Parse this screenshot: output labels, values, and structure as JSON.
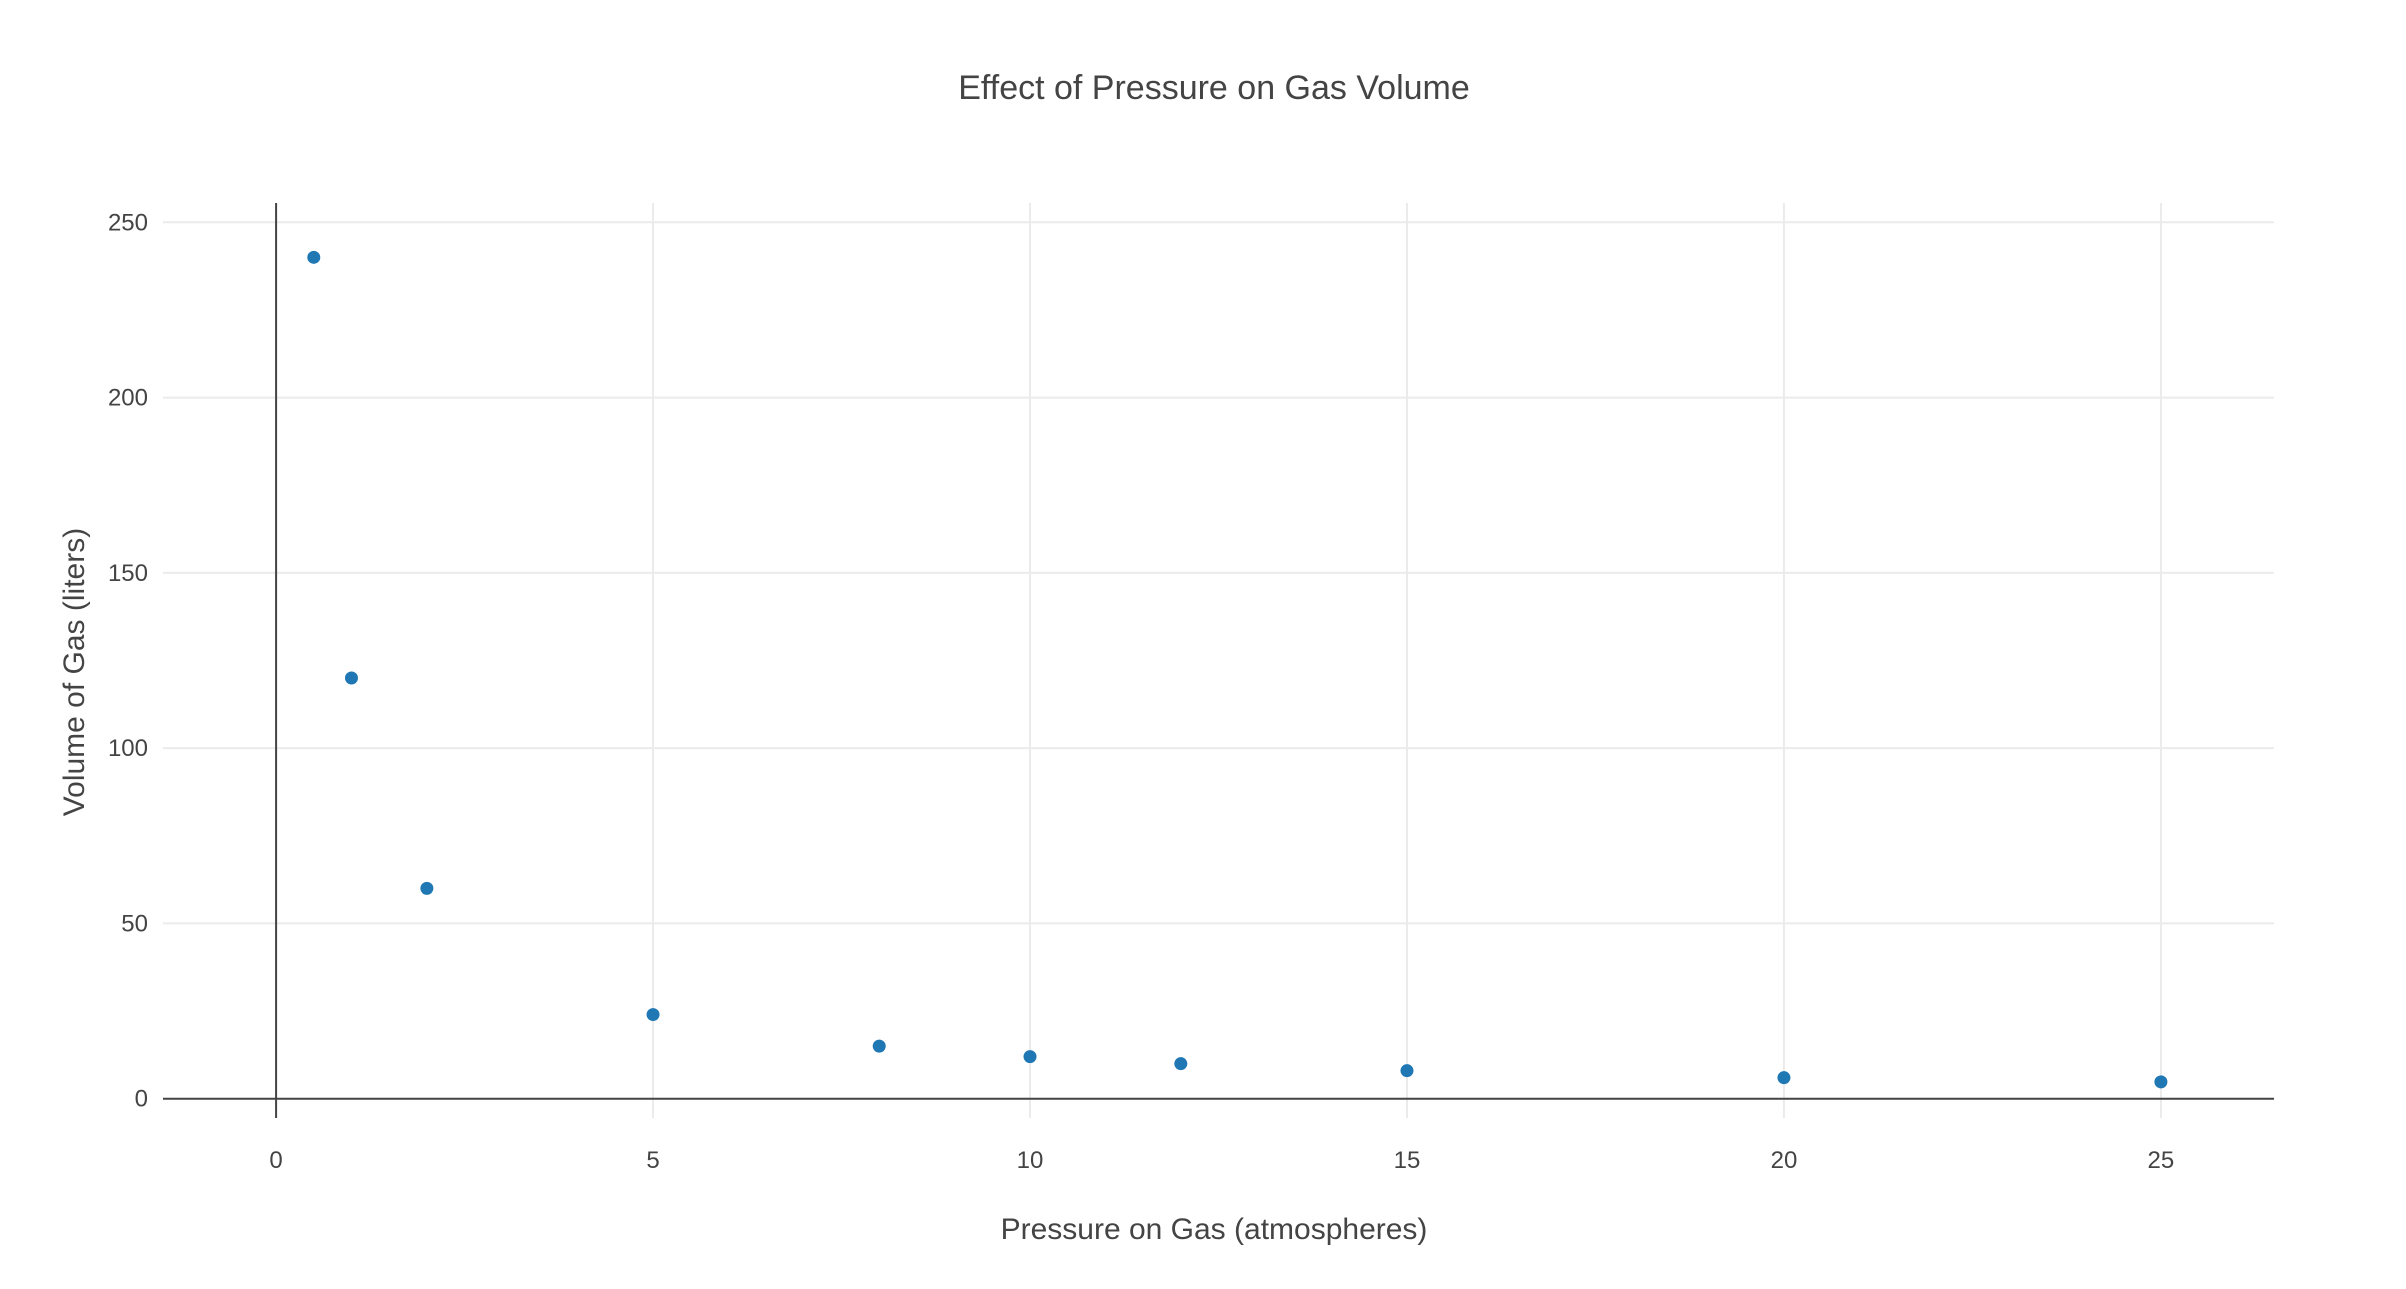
{
  "chart_data": {
    "type": "scatter",
    "title": "Effect of Pressure on Gas Volume",
    "xlabel": "Pressure on Gas (atmospheres)",
    "ylabel": "Volume of Gas (liters)",
    "xlim": [
      -1.5,
      26.5
    ],
    "ylim": [
      -5.5,
      255.5
    ],
    "xticks": [
      0,
      5,
      10,
      15,
      20,
      25
    ],
    "yticks": [
      0,
      50,
      100,
      150,
      200,
      250
    ],
    "xtick_labels": [
      "0",
      "5",
      "10",
      "15",
      "20",
      "25"
    ],
    "ytick_labels": [
      "0",
      "50",
      "100",
      "150",
      "200",
      "250"
    ],
    "grid": true,
    "marker_color": "#1f77b4",
    "series": [
      {
        "x": [
          0.5,
          1,
          2,
          5,
          8,
          10,
          12,
          15,
          20,
          25
        ],
        "y": [
          240,
          120,
          60,
          24,
          15,
          12,
          10,
          8,
          6,
          4.8
        ]
      }
    ]
  }
}
